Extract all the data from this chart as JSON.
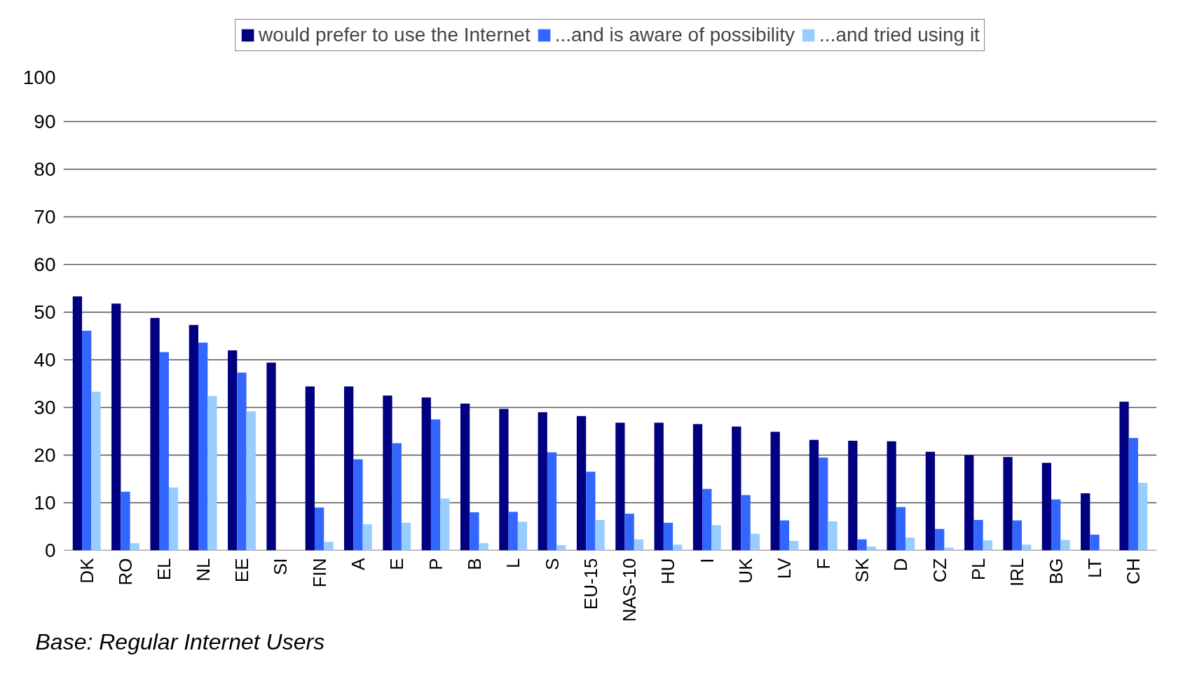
{
  "chart_data": {
    "type": "bar",
    "categories": [
      "DK",
      "RO",
      "EL",
      "NL",
      "EE",
      "SI",
      "FIN",
      "A",
      "E",
      "P",
      "B",
      "L",
      "S",
      "EU-15",
      "NAS-10",
      "HU",
      "I",
      "UK",
      "LV",
      "F",
      "SK",
      "D",
      "CZ",
      "PL",
      "IRL",
      "BG",
      "LT",
      "CH"
    ],
    "series": [
      {
        "name": "would prefer to use the Internet",
        "color": "#000080",
        "values": [
          53.3,
          51.8,
          48.8,
          47.3,
          42.0,
          39.4,
          34.4,
          34.4,
          32.5,
          32.1,
          30.8,
          29.7,
          29.0,
          28.2,
          26.8,
          26.8,
          26.5,
          26.0,
          24.9,
          23.2,
          23.0,
          22.9,
          20.7,
          20.0,
          19.6,
          18.4,
          12.0,
          31.2
        ]
      },
      {
        "name": "...and is aware of possibility",
        "color": "#3366ff",
        "values": [
          46.1,
          12.3,
          41.6,
          43.6,
          37.3,
          0,
          9.0,
          19.1,
          22.5,
          27.5,
          8.0,
          8.1,
          20.6,
          16.5,
          7.7,
          5.8,
          12.9,
          11.6,
          6.3,
          19.5,
          2.3,
          9.1,
          4.5,
          6.4,
          6.3,
          10.7,
          3.3,
          23.6
        ]
      },
      {
        "name": "...and tried using it",
        "color": "#99ccff",
        "values": [
          33.3,
          1.5,
          13.2,
          32.4,
          29.2,
          0,
          1.8,
          5.5,
          5.8,
          10.9,
          1.5,
          6.0,
          1.1,
          6.4,
          2.3,
          1.2,
          5.3,
          3.5,
          2.0,
          6.1,
          0.8,
          2.7,
          0.6,
          2.1,
          1.2,
          2.2,
          0.2,
          14.2
        ]
      }
    ],
    "ylim": [
      0,
      100
    ],
    "yticks": [
      0,
      10,
      20,
      30,
      40,
      50,
      60,
      70,
      80,
      90,
      100
    ],
    "grid": "y",
    "legend": "top",
    "annotations": [
      "Base: Regular Internet Users"
    ]
  }
}
